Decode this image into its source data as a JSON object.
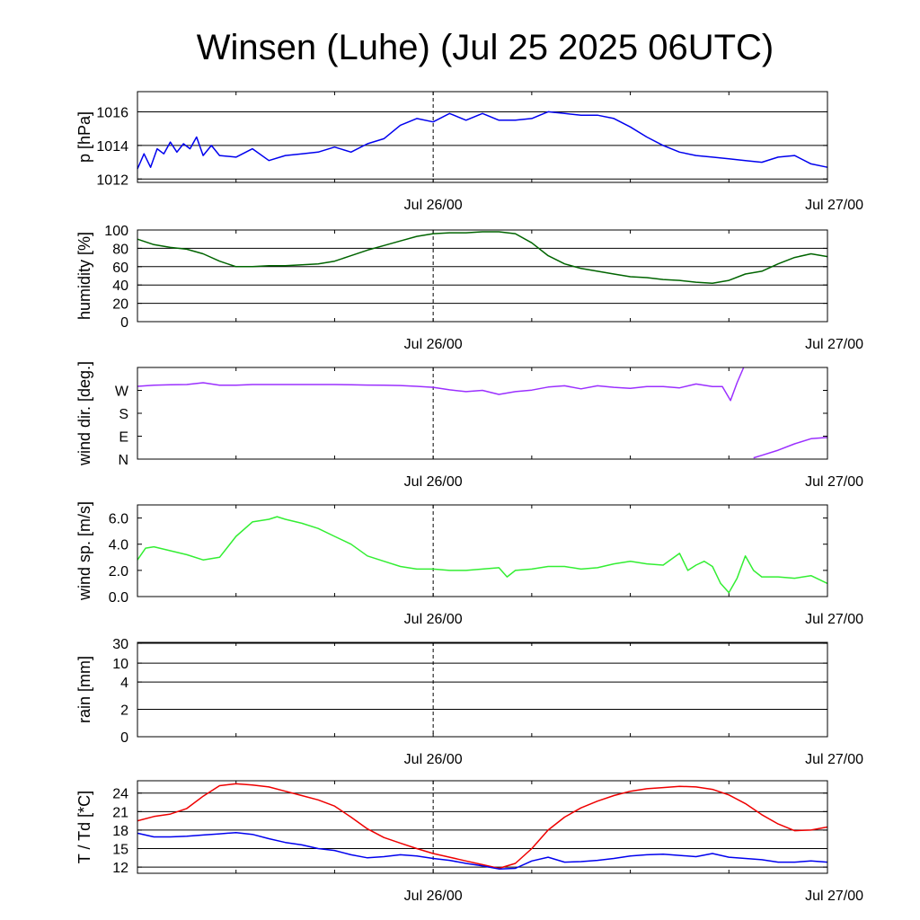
{
  "chart_data": {
    "type": "line",
    "title": "Winsen (Luhe) (Jul 25 2025 06UTC)",
    "x_axis": {
      "start": "2025-07-25 06:00",
      "end": "2025-07-27 00:00",
      "labels": [
        {
          "x": "2025-07-26 00:00",
          "text": "Jul 26/00"
        },
        {
          "x": "2025-07-27 00:00",
          "text": "Jul 27/00"
        }
      ]
    },
    "panels": [
      {
        "id": "pressure",
        "ylabel": "p [hPa]",
        "ylim": [
          1011.8,
          1017.2
        ],
        "grid_lines": [
          1012,
          1014,
          1016
        ],
        "ticks": [
          {
            "v": 1012,
            "label": "1012"
          },
          {
            "v": 1014,
            "label": "1014"
          },
          {
            "v": 1016,
            "label": "1016"
          }
        ],
        "series": [
          {
            "color": "#0000ee",
            "x_hours": [
              0,
              0.4,
              0.8,
              1.2,
              1.6,
              2,
              2.4,
              2.8,
              3.2,
              3.6,
              4,
              4.5,
              5,
              6,
              7,
              8,
              9,
              10,
              11,
              12,
              13,
              14,
              15,
              16,
              17,
              18,
              19,
              20,
              21,
              22,
              23,
              24,
              25,
              26,
              27,
              28,
              29,
              30,
              31,
              32,
              33,
              34,
              35,
              36,
              37,
              38,
              39,
              40,
              41,
              42
            ],
            "values": [
              1012.6,
              1013.5,
              1012.7,
              1013.8,
              1013.5,
              1014.2,
              1013.6,
              1014.1,
              1013.8,
              1014.5,
              1013.4,
              1014.0,
              1013.4,
              1013.3,
              1013.8,
              1013.1,
              1013.4,
              1013.5,
              1013.6,
              1013.9,
              1013.6,
              1014.1,
              1014.4,
              1015.2,
              1015.6,
              1015.4,
              1015.9,
              1015.5,
              1015.9,
              1015.5,
              1015.5,
              1015.6,
              1016.0,
              1015.9,
              1015.8,
              1015.8,
              1015.6,
              1015.1,
              1014.5,
              1014.0,
              1013.6,
              1013.4,
              1013.3,
              1013.2,
              1013.1,
              1013.0,
              1013.3,
              1013.4,
              1012.9,
              1012.7
            ]
          }
        ]
      },
      {
        "id": "humidity",
        "ylabel": "humidity [%]",
        "ylim": [
          0,
          100
        ],
        "grid_lines": [
          20,
          40,
          60,
          80,
          100
        ],
        "ticks": [
          {
            "v": 0,
            "label": "0"
          },
          {
            "v": 20,
            "label": "20"
          },
          {
            "v": 40,
            "label": "40"
          },
          {
            "v": 60,
            "label": "60"
          },
          {
            "v": 80,
            "label": "80"
          },
          {
            "v": 100,
            "label": "100"
          }
        ],
        "series": [
          {
            "color": "#006400",
            "x_hours": [
              0,
              1,
              2,
              3,
              4,
              5,
              6,
              7,
              8,
              9,
              10,
              11,
              12,
              13,
              14,
              15,
              16,
              17,
              18,
              19,
              20,
              21,
              22,
              23,
              24,
              25,
              26,
              27,
              28,
              29,
              30,
              31,
              32,
              33,
              34,
              35,
              36,
              37,
              38,
              39,
              40,
              41,
              42
            ],
            "values": [
              90,
              84,
              81,
              79,
              74,
              66,
              60,
              60,
              61,
              61,
              62,
              63,
              66,
              72,
              78,
              83,
              88,
              93,
              96,
              97,
              97,
              98,
              98,
              96,
              86,
              72,
              63,
              58,
              55,
              52,
              49,
              48,
              46,
              45,
              43,
              42,
              45,
              52,
              55,
              63,
              70,
              74,
              71
            ]
          }
        ]
      },
      {
        "id": "wind_direction",
        "ylabel": "wind dir. [deg.]",
        "ylim": [
          0,
          360
        ],
        "grid_lines": [],
        "ticks": [
          {
            "v": 0,
            "label": "N"
          },
          {
            "v": 90,
            "label": "E"
          },
          {
            "v": 180,
            "label": "S"
          },
          {
            "v": 270,
            "label": "W"
          }
        ],
        "series": [
          {
            "color": "#9b30ff",
            "x_hours": [
              0,
              1,
              2,
              3,
              4,
              5,
              6,
              7,
              8,
              9,
              10,
              11,
              12,
              13,
              14,
              15,
              16,
              17,
              18,
              19,
              20,
              21,
              22,
              23,
              24,
              25,
              26,
              27,
              28,
              29,
              30,
              31,
              32,
              33,
              34,
              35,
              35.6,
              36.1,
              36.5,
              36.9
            ],
            "values": [
              286,
              290,
              292,
              293,
              300,
              290,
              290,
              293,
              293,
              293,
              293,
              293,
              293,
              292,
              291,
              290,
              289,
              286,
              282,
              272,
              265,
              270,
              254,
              265,
              271,
              283,
              288,
              276,
              288,
              282,
              278,
              285,
              285,
              280,
              295,
              285,
              285,
              230,
              300,
              360
            ]
          },
          {
            "color": "#9b30ff",
            "x_hours": [
              37.5,
              38,
              39,
              40,
              41,
              42
            ],
            "values": [
              5,
              15,
              35,
              60,
              80,
              85
            ]
          }
        ]
      },
      {
        "id": "wind_speed",
        "ylabel": "wind sp. [m/s]",
        "ylim": [
          0,
          7
        ],
        "grid_lines": [],
        "ticks": [
          {
            "v": 0,
            "label": "0.0"
          },
          {
            "v": 2,
            "label": "2.0"
          },
          {
            "v": 4,
            "label": "4.0"
          },
          {
            "v": 6,
            "label": "6.0"
          }
        ],
        "series": [
          {
            "color": "#33ee33",
            "x_hours": [
              0,
              0.5,
              1,
              2,
              3,
              4,
              5,
              5.5,
              6,
              7,
              8,
              8.5,
              9,
              10,
              11,
              12,
              13,
              14,
              15,
              16,
              17,
              18,
              19,
              20,
              21,
              22,
              22.5,
              23,
              24,
              25,
              26,
              27,
              28,
              29,
              30,
              31,
              32,
              33,
              33.5,
              34,
              34.5,
              35,
              35.5,
              36,
              36.5,
              37,
              37.5,
              38,
              39,
              40,
              41,
              42
            ],
            "values": [
              2.8,
              3.7,
              3.8,
              3.5,
              3.2,
              2.8,
              3.0,
              3.8,
              4.6,
              5.7,
              5.9,
              6.1,
              5.9,
              5.6,
              5.2,
              4.6,
              4.0,
              3.1,
              2.7,
              2.3,
              2.1,
              2.1,
              2.0,
              2.0,
              2.1,
              2.2,
              1.5,
              2.0,
              2.1,
              2.3,
              2.3,
              2.1,
              2.2,
              2.5,
              2.7,
              2.5,
              2.4,
              3.3,
              2.0,
              2.4,
              2.7,
              2.3,
              1.0,
              0.3,
              1.4,
              3.1,
              2.0,
              1.5,
              1.5,
              1.4,
              1.6,
              1.0
            ]
          }
        ]
      },
      {
        "id": "rain",
        "ylabel": "rain [mm]",
        "ylim": [
          0,
          30
        ],
        "grid_lines": [
          2,
          4,
          10,
          30
        ],
        "ticks": [
          {
            "v": 0,
            "label": "0"
          },
          {
            "v": 2,
            "label": "2"
          },
          {
            "v": 4,
            "label": "4"
          },
          {
            "v": 10,
            "label": "10"
          },
          {
            "v": 30,
            "label": "30"
          }
        ],
        "series": []
      },
      {
        "id": "temperature",
        "ylabel": "T / Td [*C]",
        "ylim": [
          11,
          26
        ],
        "grid_lines": [
          12,
          15,
          18,
          21,
          24
        ],
        "ticks": [
          {
            "v": 12,
            "label": "12"
          },
          {
            "v": 15,
            "label": "15"
          },
          {
            "v": 18,
            "label": "18"
          },
          {
            "v": 21,
            "label": "21"
          },
          {
            "v": 24,
            "label": "24"
          }
        ],
        "series": [
          {
            "color": "#ee0000",
            "x_hours": [
              0,
              1,
              2,
              3,
              4,
              5,
              6,
              7,
              8,
              9,
              10,
              11,
              12,
              13,
              14,
              15,
              16,
              17,
              18,
              19,
              20,
              21,
              22,
              23,
              24,
              25,
              26,
              27,
              28,
              29,
              30,
              31,
              32,
              33,
              34,
              35,
              36,
              37,
              38,
              39,
              40,
              41,
              42
            ],
            "values": [
              19.5,
              20.2,
              20.6,
              21.5,
              23.5,
              25.2,
              25.5,
              25.3,
              25.0,
              24.3,
              23.6,
              22.9,
              21.9,
              20.1,
              18.2,
              16.8,
              15.9,
              15.0,
              14.2,
              13.6,
              13.0,
              12.4,
              11.8,
              12.6,
              15.0,
              18.0,
              20.1,
              21.6,
              22.7,
              23.6,
              24.3,
              24.7,
              24.9,
              25.1,
              25.0,
              24.6,
              23.7,
              22.3,
              20.5,
              19.0,
              17.9,
              18.0,
              18.5
            ]
          },
          {
            "color": "#0000ee",
            "x_hours": [
              0,
              1,
              2,
              3,
              4,
              5,
              6,
              7,
              8,
              9,
              10,
              11,
              12,
              13,
              14,
              15,
              16,
              17,
              18,
              19,
              20,
              21,
              22,
              23,
              24,
              25,
              26,
              27,
              28,
              29,
              30,
              31,
              32,
              33,
              34,
              35,
              36,
              37,
              38,
              39,
              40,
              41,
              42
            ],
            "values": [
              17.5,
              16.9,
              16.9,
              17.0,
              17.2,
              17.4,
              17.6,
              17.3,
              16.6,
              16.0,
              15.6,
              15.0,
              14.7,
              14.0,
              13.5,
              13.7,
              14.0,
              13.8,
              13.4,
              13.1,
              12.6,
              12.2,
              11.7,
              11.8,
              13.0,
              13.6,
              12.8,
              12.9,
              13.1,
              13.4,
              13.8,
              14.0,
              14.1,
              13.9,
              13.7,
              14.2,
              13.6,
              13.4,
              13.2,
              12.8,
              12.8,
              13.0,
              12.8
            ]
          }
        ]
      }
    ]
  }
}
